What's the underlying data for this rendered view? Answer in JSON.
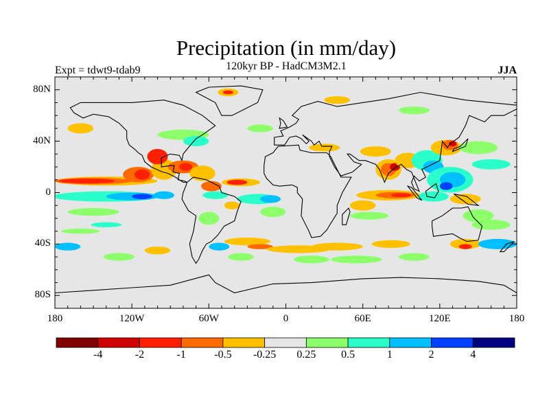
{
  "title": "Precipitation (in mm/day)",
  "subtitle": "120kyr BP - HadCM3M2.1",
  "left_string": "Expt = tdwt9-tdab9",
  "right_string": "JJA",
  "map": {
    "projection": "cylindrical equidistant",
    "lon_range": [
      -180,
      180
    ],
    "lat_range": [
      -90,
      90
    ],
    "lat_ticks": [
      {
        "v": 80,
        "label": "80N"
      },
      {
        "v": 40,
        "label": "40N"
      },
      {
        "v": 0,
        "label": "0"
      },
      {
        "v": -40,
        "label": "40S"
      },
      {
        "v": -80,
        "label": "80S"
      }
    ],
    "lon_ticks": [
      {
        "v": -180,
        "label": "180"
      },
      {
        "v": -120,
        "label": "120W"
      },
      {
        "v": -60,
        "label": "60W"
      },
      {
        "v": 0,
        "label": "0"
      },
      {
        "v": 60,
        "label": "60E"
      },
      {
        "v": 120,
        "label": "120E"
      },
      {
        "v": 180,
        "label": "180"
      }
    ],
    "background_color": "#e6e6e6"
  },
  "colorbar": {
    "colors": [
      "#800000",
      "#d00000",
      "#ff2000",
      "#ff6a00",
      "#ffc000",
      "#e6e6e6",
      "#8cff6a",
      "#2affcc",
      "#00c0ff",
      "#0040ff",
      "#000080"
    ],
    "labels": [
      "-4",
      "-2",
      "-1",
      "-0.5",
      "-0.25",
      "0.25",
      "0.5",
      "1",
      "2",
      "4"
    ]
  }
}
